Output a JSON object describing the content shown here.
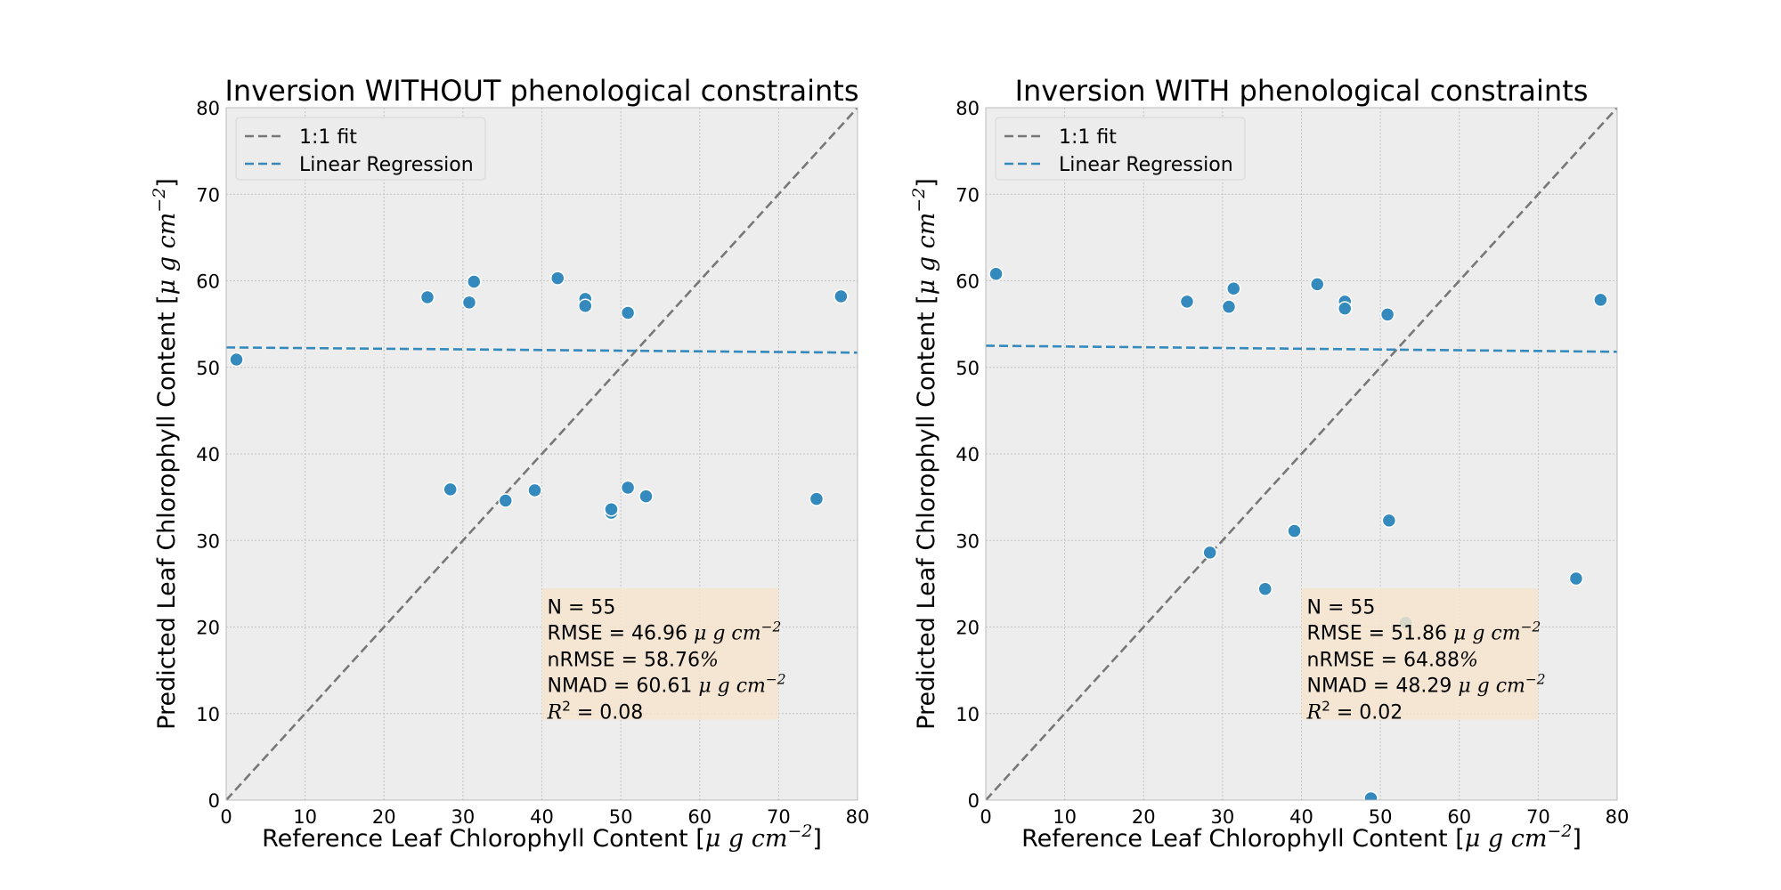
{
  "chart_data": [
    {
      "type": "scatter",
      "title": "Inversion WITHOUT phenological constraints",
      "xlabel": "Reference Leaf Chlorophyll Content [μ g cm⁻²]",
      "ylabel": "Predicted Leaf Chlorophyll Content [μ g cm⁻²]",
      "xlim": [
        0,
        80
      ],
      "ylim": [
        0,
        80
      ],
      "xticks": [
        "0",
        "10",
        "20",
        "30",
        "40",
        "50",
        "60",
        "70",
        "80"
      ],
      "yticks": [
        "0",
        "10",
        "20",
        "30",
        "40",
        "50",
        "60",
        "70",
        "80"
      ],
      "grid": true,
      "legend_position": "top-left",
      "legend": [
        "1:1 fit",
        "Linear Regression"
      ],
      "points": {
        "x": [
          1.3,
          25.5,
          28.4,
          30.8,
          31.4,
          35.4,
          39.1,
          42.0,
          45.5,
          45.5,
          48.8,
          48.8,
          50.9,
          50.9,
          53.2,
          74.8,
          77.9
        ],
        "y": [
          50.9,
          58.1,
          35.9,
          57.5,
          59.9,
          34.6,
          35.8,
          60.3,
          57.9,
          57.1,
          33.2,
          33.6,
          56.3,
          36.1,
          35.1,
          34.8,
          58.2
        ]
      },
      "one_to_one": [
        [
          0,
          0
        ],
        [
          80,
          80
        ]
      ],
      "regression": [
        [
          0,
          52.3
        ],
        [
          80,
          51.7
        ]
      ],
      "stats": {
        "n": "N = 55",
        "rmse_prefix": "RMSE = 46.96 ",
        "nrmse_prefix": "nRMSE = 58.76",
        "nrmse_suffix": "%",
        "nmad_prefix": "NMAD = 60.61 ",
        "r2_suffix": " = 0.08"
      }
    },
    {
      "type": "scatter",
      "title": "Inversion WITH phenological constraints",
      "xlabel": "Reference Leaf Chlorophyll Content [μ g cm⁻²]",
      "ylabel": "Predicted Leaf Chlorophyll Content [μ g cm⁻²]",
      "xlim": [
        0,
        80
      ],
      "ylim": [
        0,
        80
      ],
      "xticks": [
        "0",
        "10",
        "20",
        "30",
        "40",
        "50",
        "60",
        "70",
        "80"
      ],
      "yticks": [
        "0",
        "10",
        "20",
        "30",
        "40",
        "50",
        "60",
        "70",
        "80"
      ],
      "grid": true,
      "legend_position": "top-left",
      "legend": [
        "1:1 fit",
        "Linear Regression"
      ],
      "points": {
        "x": [
          1.3,
          25.5,
          28.4,
          30.8,
          31.4,
          35.4,
          39.1,
          42.0,
          45.5,
          45.5,
          48.8,
          50.9,
          51.1,
          53.2,
          74.8,
          77.9
        ],
        "y": [
          60.8,
          57.6,
          28.6,
          57.0,
          59.1,
          24.4,
          31.1,
          59.6,
          57.6,
          56.8,
          0.2,
          56.1,
          32.3,
          20.5,
          25.6,
          57.8
        ]
      },
      "one_to_one": [
        [
          0,
          0
        ],
        [
          80,
          80
        ]
      ],
      "regression": [
        [
          0,
          52.5
        ],
        [
          80,
          51.8
        ]
      ],
      "stats": {
        "n": "N = 55",
        "rmse_prefix": "RMSE = 51.86 ",
        "nrmse_prefix": "nRMSE = 64.88",
        "nrmse_suffix": "%",
        "nmad_prefix": "NMAD = 48.29 ",
        "r2_suffix": " = 0.02"
      }
    }
  ],
  "units": {
    "mu": "μ",
    "g": "g",
    "cm": "cm",
    "exp": "−2",
    "bracket_open": "[",
    "bracket_close": "]",
    "r": "R",
    "r_exp": "2"
  },
  "colors": {
    "axes_bg": "#ededed",
    "grid": "#c4c4c4",
    "point": "#348abd",
    "point_edge": "#ffffff",
    "one_to_one": "#777777",
    "regression": "#348abd",
    "stats_box": "#f4e4cc",
    "legend_bg": "#ececec",
    "legend_edge": "#d6d6d6"
  }
}
